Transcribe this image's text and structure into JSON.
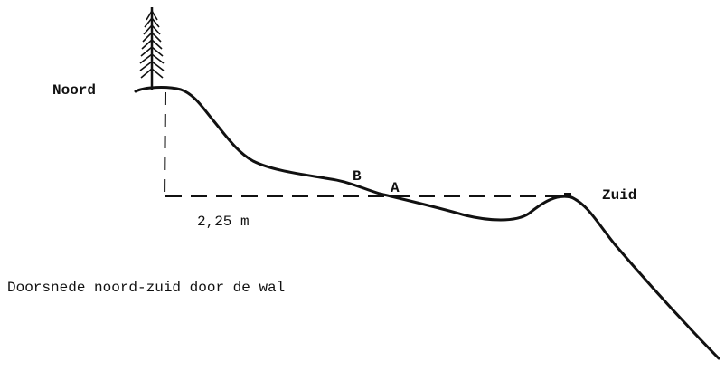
{
  "labels": {
    "north": "Noord",
    "south": "Zuid",
    "point_b": "B",
    "point_a": "A",
    "distance": "2,25 m"
  },
  "caption": "Doorsnede noord-zuid door de wal"
}
